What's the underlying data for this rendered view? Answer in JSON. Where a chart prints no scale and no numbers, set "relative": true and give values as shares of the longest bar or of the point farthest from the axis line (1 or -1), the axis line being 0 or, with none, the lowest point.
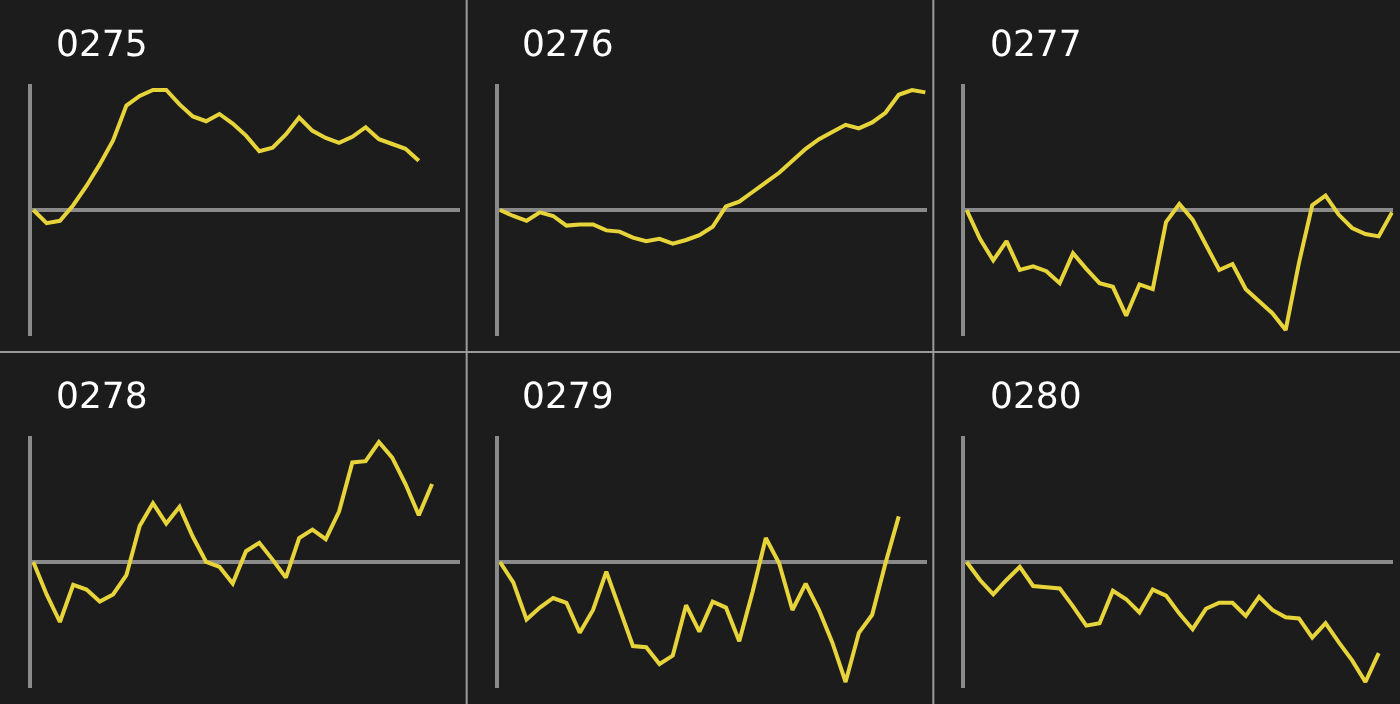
{
  "chart_data": [
    {
      "type": "line",
      "title": "0275",
      "relative": true,
      "color": "#e6d43a",
      "categories": [
        null,
        null,
        null,
        null,
        null,
        null,
        null,
        null,
        null,
        null,
        null,
        null,
        null,
        null,
        null,
        null,
        null,
        null,
        null,
        null,
        null,
        null,
        null,
        null,
        null,
        null,
        null,
        null,
        null,
        null,
        null,
        null,
        null
      ],
      "values": [
        0,
        -0.11,
        -0.09,
        0.04,
        0.2,
        0.38,
        0.58,
        0.87,
        0.95,
        1.0,
        1.0,
        0.88,
        0.78,
        0.74,
        0.8,
        0.72,
        0.62,
        0.49,
        0.52,
        0.63,
        0.77,
        0.66,
        0.6,
        0.56,
        0.61,
        0.69,
        0.59,
        0.55,
        0.51,
        0.41,
        null,
        null,
        null
      ]
    },
    {
      "type": "line",
      "title": "0276",
      "relative": true,
      "color": "#e6d43a",
      "categories": [
        null,
        null,
        null,
        null,
        null,
        null,
        null,
        null,
        null,
        null,
        null,
        null,
        null,
        null,
        null,
        null,
        null,
        null,
        null,
        null,
        null,
        null,
        null,
        null,
        null,
        null,
        null,
        null,
        null,
        null,
        null,
        null,
        null
      ],
      "values": [
        0,
        -0.05,
        -0.09,
        -0.02,
        -0.05,
        -0.13,
        -0.12,
        -0.12,
        -0.17,
        -0.18,
        -0.23,
        -0.26,
        -0.24,
        -0.28,
        -0.25,
        -0.21,
        -0.14,
        0.03,
        0.07,
        0.15,
        0.23,
        0.31,
        0.41,
        0.51,
        0.59,
        0.65,
        0.71,
        0.68,
        0.73,
        0.81,
        0.96,
        1.0,
        0.98
      ]
    },
    {
      "type": "line",
      "title": "0277",
      "relative": true,
      "color": "#e6d43a",
      "categories": [
        null,
        null,
        null,
        null,
        null,
        null,
        null,
        null,
        null,
        null,
        null,
        null,
        null,
        null,
        null,
        null,
        null,
        null,
        null,
        null,
        null,
        null,
        null,
        null,
        null,
        null,
        null,
        null,
        null,
        null,
        null,
        null,
        null
      ],
      "values": [
        0,
        -0.24,
        -0.42,
        -0.26,
        -0.5,
        -0.47,
        -0.51,
        -0.61,
        -0.36,
        -0.49,
        -0.61,
        -0.64,
        -0.88,
        -0.62,
        -0.66,
        -0.1,
        0.05,
        -0.08,
        -0.29,
        -0.5,
        -0.45,
        -0.66,
        -0.76,
        -0.86,
        -1.0,
        -0.44,
        0.04,
        0.12,
        -0.04,
        -0.15,
        -0.2,
        -0.22,
        -0.02
      ]
    },
    {
      "type": "line",
      "title": "0278",
      "relative": true,
      "color": "#e6d43a",
      "categories": [
        null,
        null,
        null,
        null,
        null,
        null,
        null,
        null,
        null,
        null,
        null,
        null,
        null,
        null,
        null,
        null,
        null,
        null,
        null,
        null,
        null,
        null,
        null,
        null,
        null,
        null,
        null,
        null,
        null,
        null,
        null,
        null,
        null
      ],
      "values": [
        0,
        -0.27,
        -0.5,
        -0.19,
        -0.23,
        -0.33,
        -0.27,
        -0.11,
        0.3,
        0.49,
        0.32,
        0.46,
        0.21,
        0,
        -0.04,
        -0.18,
        0.09,
        0.16,
        0.02,
        -0.13,
        0.2,
        0.27,
        0.19,
        0.42,
        0.83,
        0.84,
        1.0,
        0.87,
        0.65,
        0.39,
        0.65,
        null,
        null
      ]
    },
    {
      "type": "line",
      "title": "0279",
      "relative": true,
      "color": "#e6d43a",
      "categories": [
        null,
        null,
        null,
        null,
        null,
        null,
        null,
        null,
        null,
        null,
        null,
        null,
        null,
        null,
        null,
        null,
        null,
        null,
        null,
        null,
        null,
        null,
        null,
        null,
        null,
        null,
        null,
        null,
        null,
        null,
        null,
        null,
        null
      ],
      "values": [
        0,
        -0.17,
        -0.48,
        -0.38,
        -0.3,
        -0.34,
        -0.59,
        -0.4,
        -0.08,
        -0.39,
        -0.7,
        -0.71,
        -0.85,
        -0.78,
        -0.36,
        -0.58,
        -0.33,
        -0.38,
        -0.66,
        -0.25,
        0.2,
        -0.01,
        -0.4,
        -0.18,
        -0.4,
        -0.67,
        -1.0,
        -0.59,
        -0.44,
        -0.01,
        0.38,
        null,
        null
      ]
    },
    {
      "type": "line",
      "title": "0280",
      "relative": true,
      "color": "#e6d43a",
      "categories": [
        null,
        null,
        null,
        null,
        null,
        null,
        null,
        null,
        null,
        null,
        null,
        null,
        null,
        null,
        null,
        null,
        null,
        null,
        null,
        null,
        null,
        null,
        null,
        null,
        null,
        null,
        null,
        null,
        null,
        null,
        null,
        null,
        null
      ],
      "values": [
        0,
        -0.15,
        -0.27,
        -0.15,
        -0.04,
        -0.2,
        -0.21,
        -0.22,
        -0.37,
        -0.53,
        -0.51,
        -0.24,
        -0.31,
        -0.42,
        -0.23,
        -0.28,
        -0.43,
        -0.56,
        -0.39,
        -0.34,
        -0.34,
        -0.45,
        -0.29,
        -0.4,
        -0.46,
        -0.47,
        -0.63,
        -0.51,
        -0.67,
        -0.82,
        -1.0,
        -0.76,
        null
      ]
    }
  ]
}
